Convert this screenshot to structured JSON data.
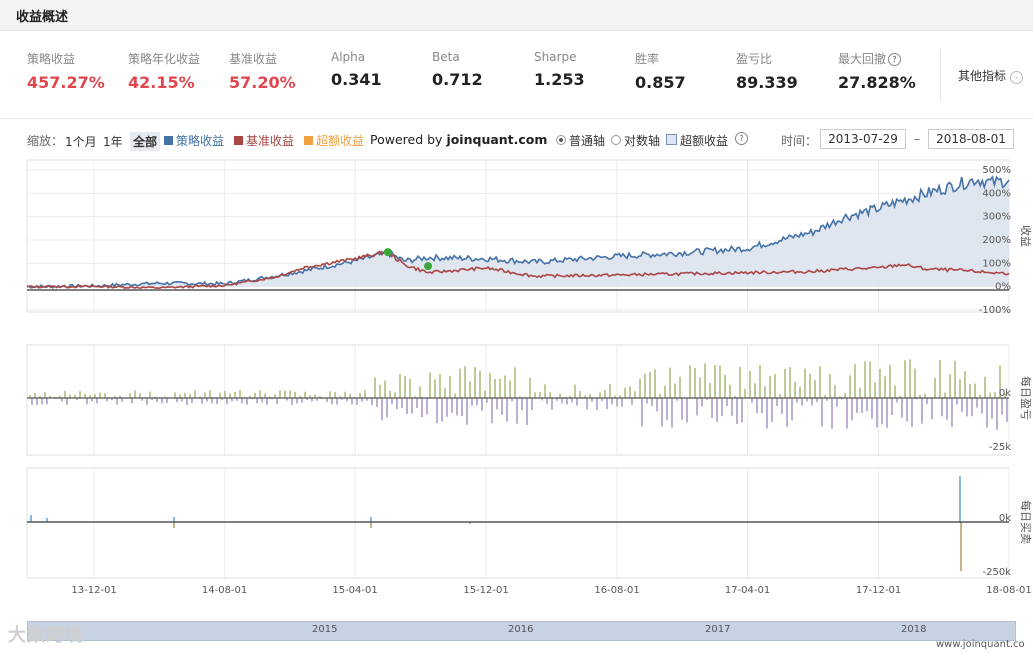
{
  "header": {
    "title": "收益概述"
  },
  "metrics": [
    {
      "label": "策略收益",
      "value": "457.27%",
      "color": "red"
    },
    {
      "label": "策略年化收益",
      "value": "42.15%",
      "color": "red"
    },
    {
      "label": "基准收益",
      "value": "57.20%",
      "color": "red"
    },
    {
      "label": "Alpha",
      "value": "0.341"
    },
    {
      "label": "Beta",
      "value": "0.712"
    },
    {
      "label": "Sharpe",
      "value": "1.253"
    },
    {
      "label": "胜率",
      "value": "0.857"
    },
    {
      "label": "盈亏比",
      "value": "89.339"
    },
    {
      "label": "最大回撤",
      "value": "27.828%",
      "help": "?"
    }
  ],
  "other_metrics": {
    "label": "其他指标",
    "icon": "chevron-right-icon",
    "glyph": "›"
  },
  "toolbar": {
    "zoom_label": "缩放：",
    "zoom_options": [
      "1个月",
      "1年",
      "全部"
    ],
    "zoom_active": "全部",
    "legend": [
      {
        "label": "策略收益",
        "color": "#4572a7"
      },
      {
        "label": "基准收益",
        "color": "#aa4643"
      },
      {
        "label": "超额收益",
        "color": "#f0a040"
      }
    ],
    "powered_by": "Powered by ",
    "powered_brand": "joinquant.com",
    "axis_modes": [
      "普通轴",
      "对数轴"
    ],
    "axis_mode_selected": "普通轴",
    "excess_checkbox": "超额收益",
    "help_glyph": "?",
    "time_label": "时间：",
    "start_date": "2013-07-29",
    "date_sep": "–",
    "end_date": "2018-08-01"
  },
  "panels": {
    "returns": {
      "title": "收益",
      "ticks": [
        "500%",
        "400%",
        "300%",
        "200%",
        "100%",
        "0%",
        "-100%"
      ]
    },
    "daily_pnl": {
      "title": "每日盈亏",
      "ticks": [
        "0k",
        "-25k"
      ]
    },
    "daily_trade": {
      "title": "每日买卖",
      "ticks": [
        "0k",
        "-250k"
      ]
    }
  },
  "x_axis": {
    "ticks": [
      "13-12-01",
      "14-08-01",
      "15-04-01",
      "15-12-01",
      "16-08-01",
      "17-04-01",
      "17-12-01",
      "18-08-01"
    ]
  },
  "navigator": {
    "years": [
      "2015",
      "2016",
      "2017",
      "2018"
    ]
  },
  "footer": {
    "brand": "www.joinquant.co"
  },
  "watermark": {
    "text": "大数跨境"
  },
  "colors": {
    "strategy": "#4572a7",
    "benchmark": "#aa4643",
    "excess": "#f0a040",
    "fill": "#dce3ee",
    "positive_bar": "#8fa852",
    "negative_bar": "#8f7ab5",
    "buy_bar": "#5aa0d6",
    "sell_bar": "#b59a5a",
    "marker": "#3aa835"
  },
  "chart_data": {
    "type": "line",
    "x_range": [
      "2013-07-29",
      "2018-08-01"
    ],
    "ylim": [
      -100,
      500
    ],
    "series": [
      {
        "name": "策略收益",
        "x": [
          "2013-07-29",
          "2013-12-01",
          "2014-04-01",
          "2014-08-01",
          "2014-11-01",
          "2015-01-01",
          "2015-04-01",
          "2015-06-01",
          "2015-07-01",
          "2015-08-15",
          "2015-12-01",
          "2016-03-01",
          "2016-08-01",
          "2016-12-01",
          "2017-04-01",
          "2017-08-01",
          "2017-10-01",
          "2017-12-01",
          "2018-01-15",
          "2018-03-01",
          "2018-05-01",
          "2018-06-01",
          "2018-07-01",
          "2018-08-01"
        ],
        "values": [
          0,
          3,
          15,
          12,
          45,
          70,
          110,
          145,
          110,
          125,
          120,
          105,
          130,
          145,
          165,
          235,
          300,
          335,
          370,
          400,
          440,
          460,
          445,
          457
        ]
      },
      {
        "name": "基准收益",
        "x": [
          "2013-07-29",
          "2013-12-01",
          "2014-04-01",
          "2014-08-01",
          "2014-11-01",
          "2015-01-01",
          "2015-04-01",
          "2015-06-01",
          "2015-07-01",
          "2015-08-15",
          "2015-12-01",
          "2016-03-01",
          "2016-08-01",
          "2016-12-01",
          "2017-04-01",
          "2017-08-01",
          "2017-10-01",
          "2017-12-01",
          "2018-01-15",
          "2018-03-01",
          "2018-05-01",
          "2018-06-01",
          "2018-07-01",
          "2018-08-01"
        ],
        "values": [
          0,
          1,
          -5,
          5,
          40,
          85,
          120,
          150,
          95,
          60,
          80,
          45,
          50,
          55,
          60,
          65,
          75,
          80,
          95,
          75,
          70,
          65,
          60,
          57
        ]
      }
    ]
  }
}
